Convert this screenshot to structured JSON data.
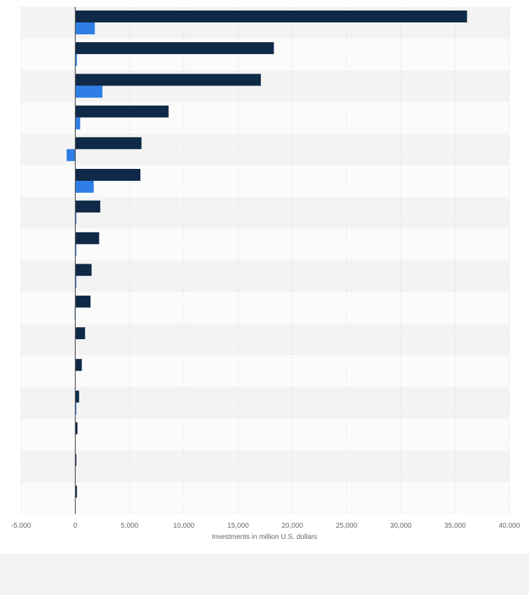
{
  "chart_data": {
    "type": "bar",
    "orientation": "horizontal",
    "xlabel": "Investments in million U.S. dollars",
    "ylabel": "",
    "xlim": [
      -5000,
      40000
    ],
    "x_ticks": [
      -5000,
      0,
      5000,
      10000,
      15000,
      20000,
      25000,
      30000,
      35000,
      40000
    ],
    "x_tick_labels": [
      "-5,000",
      "0",
      "5,000",
      "10,000",
      "15,000",
      "20,000",
      "25,000",
      "30,000",
      "35,000",
      "40,000"
    ],
    "grid": true,
    "categories": [
      "",
      "",
      "",
      "",
      "",
      "",
      "",
      "",
      "",
      "",
      "",
      "",
      "",
      "",
      "",
      ""
    ],
    "series": [
      {
        "color": "#0f2a48",
        "values": [
          36100,
          18300,
          17100,
          8600,
          6100,
          6000,
          2300,
          2200,
          1500,
          1400,
          900,
          600,
          350,
          200,
          100,
          150
        ]
      },
      {
        "color": "#2f7ee6",
        "values": [
          1800,
          150,
          2500,
          450,
          -800,
          1700,
          80,
          80,
          60,
          -60,
          0,
          0,
          50,
          0,
          0,
          0
        ]
      }
    ]
  }
}
